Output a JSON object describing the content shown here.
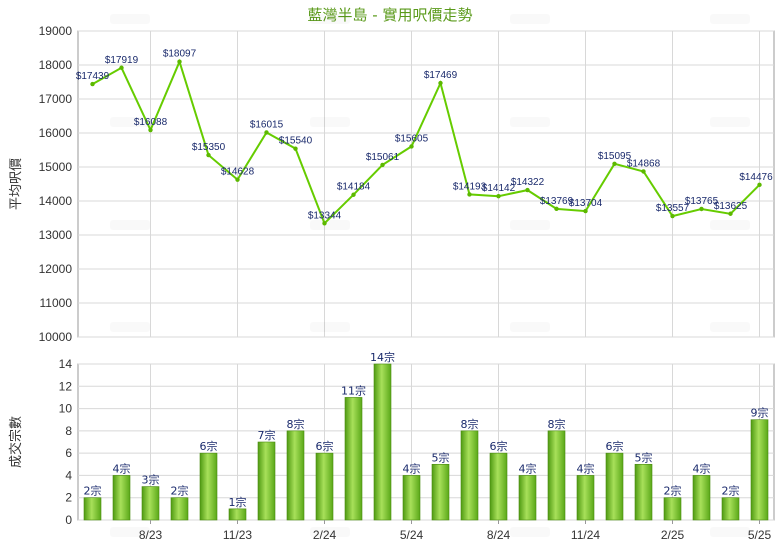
{
  "chart_data": [
    {
      "type": "line",
      "title": "藍灣半島 - 實用呎價走勢",
      "ylabel": "平均呎價",
      "ylim": [
        10000,
        19000
      ],
      "yticks": [
        10000,
        11000,
        12000,
        13000,
        14000,
        15000,
        16000,
        17000,
        18000,
        19000
      ],
      "xtick_labels": [
        "8/23",
        "11/23",
        "2/24",
        "5/24",
        "8/24",
        "11/24",
        "2/25",
        "5/25"
      ],
      "grid": true,
      "line_color": "#66cc00",
      "series": [
        {
          "values": [
            17439,
            17919,
            16088,
            18097,
            15350,
            14628,
            16015,
            15540,
            13344,
            14184,
            15061,
            15605,
            17469,
            14193,
            14142,
            14322,
            13769,
            13704,
            15095,
            14868,
            13557,
            13765,
            13625,
            14476
          ],
          "labels": [
            "$17439",
            "$17919",
            "$16088",
            "$18097",
            "$15350",
            "$14628",
            "$16015",
            "$15540",
            "$13344",
            "$14184",
            "$15061",
            "$15605",
            "$17469",
            "$14193",
            "$14142",
            "$14322",
            "$13769",
            "$13704",
            "$15095",
            "$14868",
            "$13557",
            "$13765",
            "$13625",
            "$14476"
          ]
        }
      ]
    },
    {
      "type": "bar",
      "ylabel": "成交宗數",
      "ylim": [
        0,
        14
      ],
      "yticks": [
        0,
        2,
        4,
        6,
        8,
        10,
        12,
        14
      ],
      "xtick_labels": [
        "8/23",
        "11/23",
        "2/24",
        "5/24",
        "8/24",
        "11/24",
        "2/25",
        "5/25"
      ],
      "grid": true,
      "bar_color": "#7bc428",
      "series": [
        {
          "values": [
            2,
            4,
            3,
            2,
            6,
            1,
            7,
            8,
            6,
            11,
            14,
            4,
            5,
            8,
            6,
            4,
            8,
            4,
            6,
            5,
            2,
            4,
            2,
            9
          ],
          "labels": [
            "2宗",
            "4宗",
            "3宗",
            "2宗",
            "6宗",
            "1宗",
            "7宗",
            "8宗",
            "6宗",
            "11宗",
            "14宗",
            "4宗",
            "5宗",
            "8宗",
            "6宗",
            "4宗",
            "8宗",
            "4宗",
            "6宗",
            "5宗",
            "2宗",
            "4宗",
            "2宗",
            "9宗"
          ]
        }
      ]
    }
  ]
}
